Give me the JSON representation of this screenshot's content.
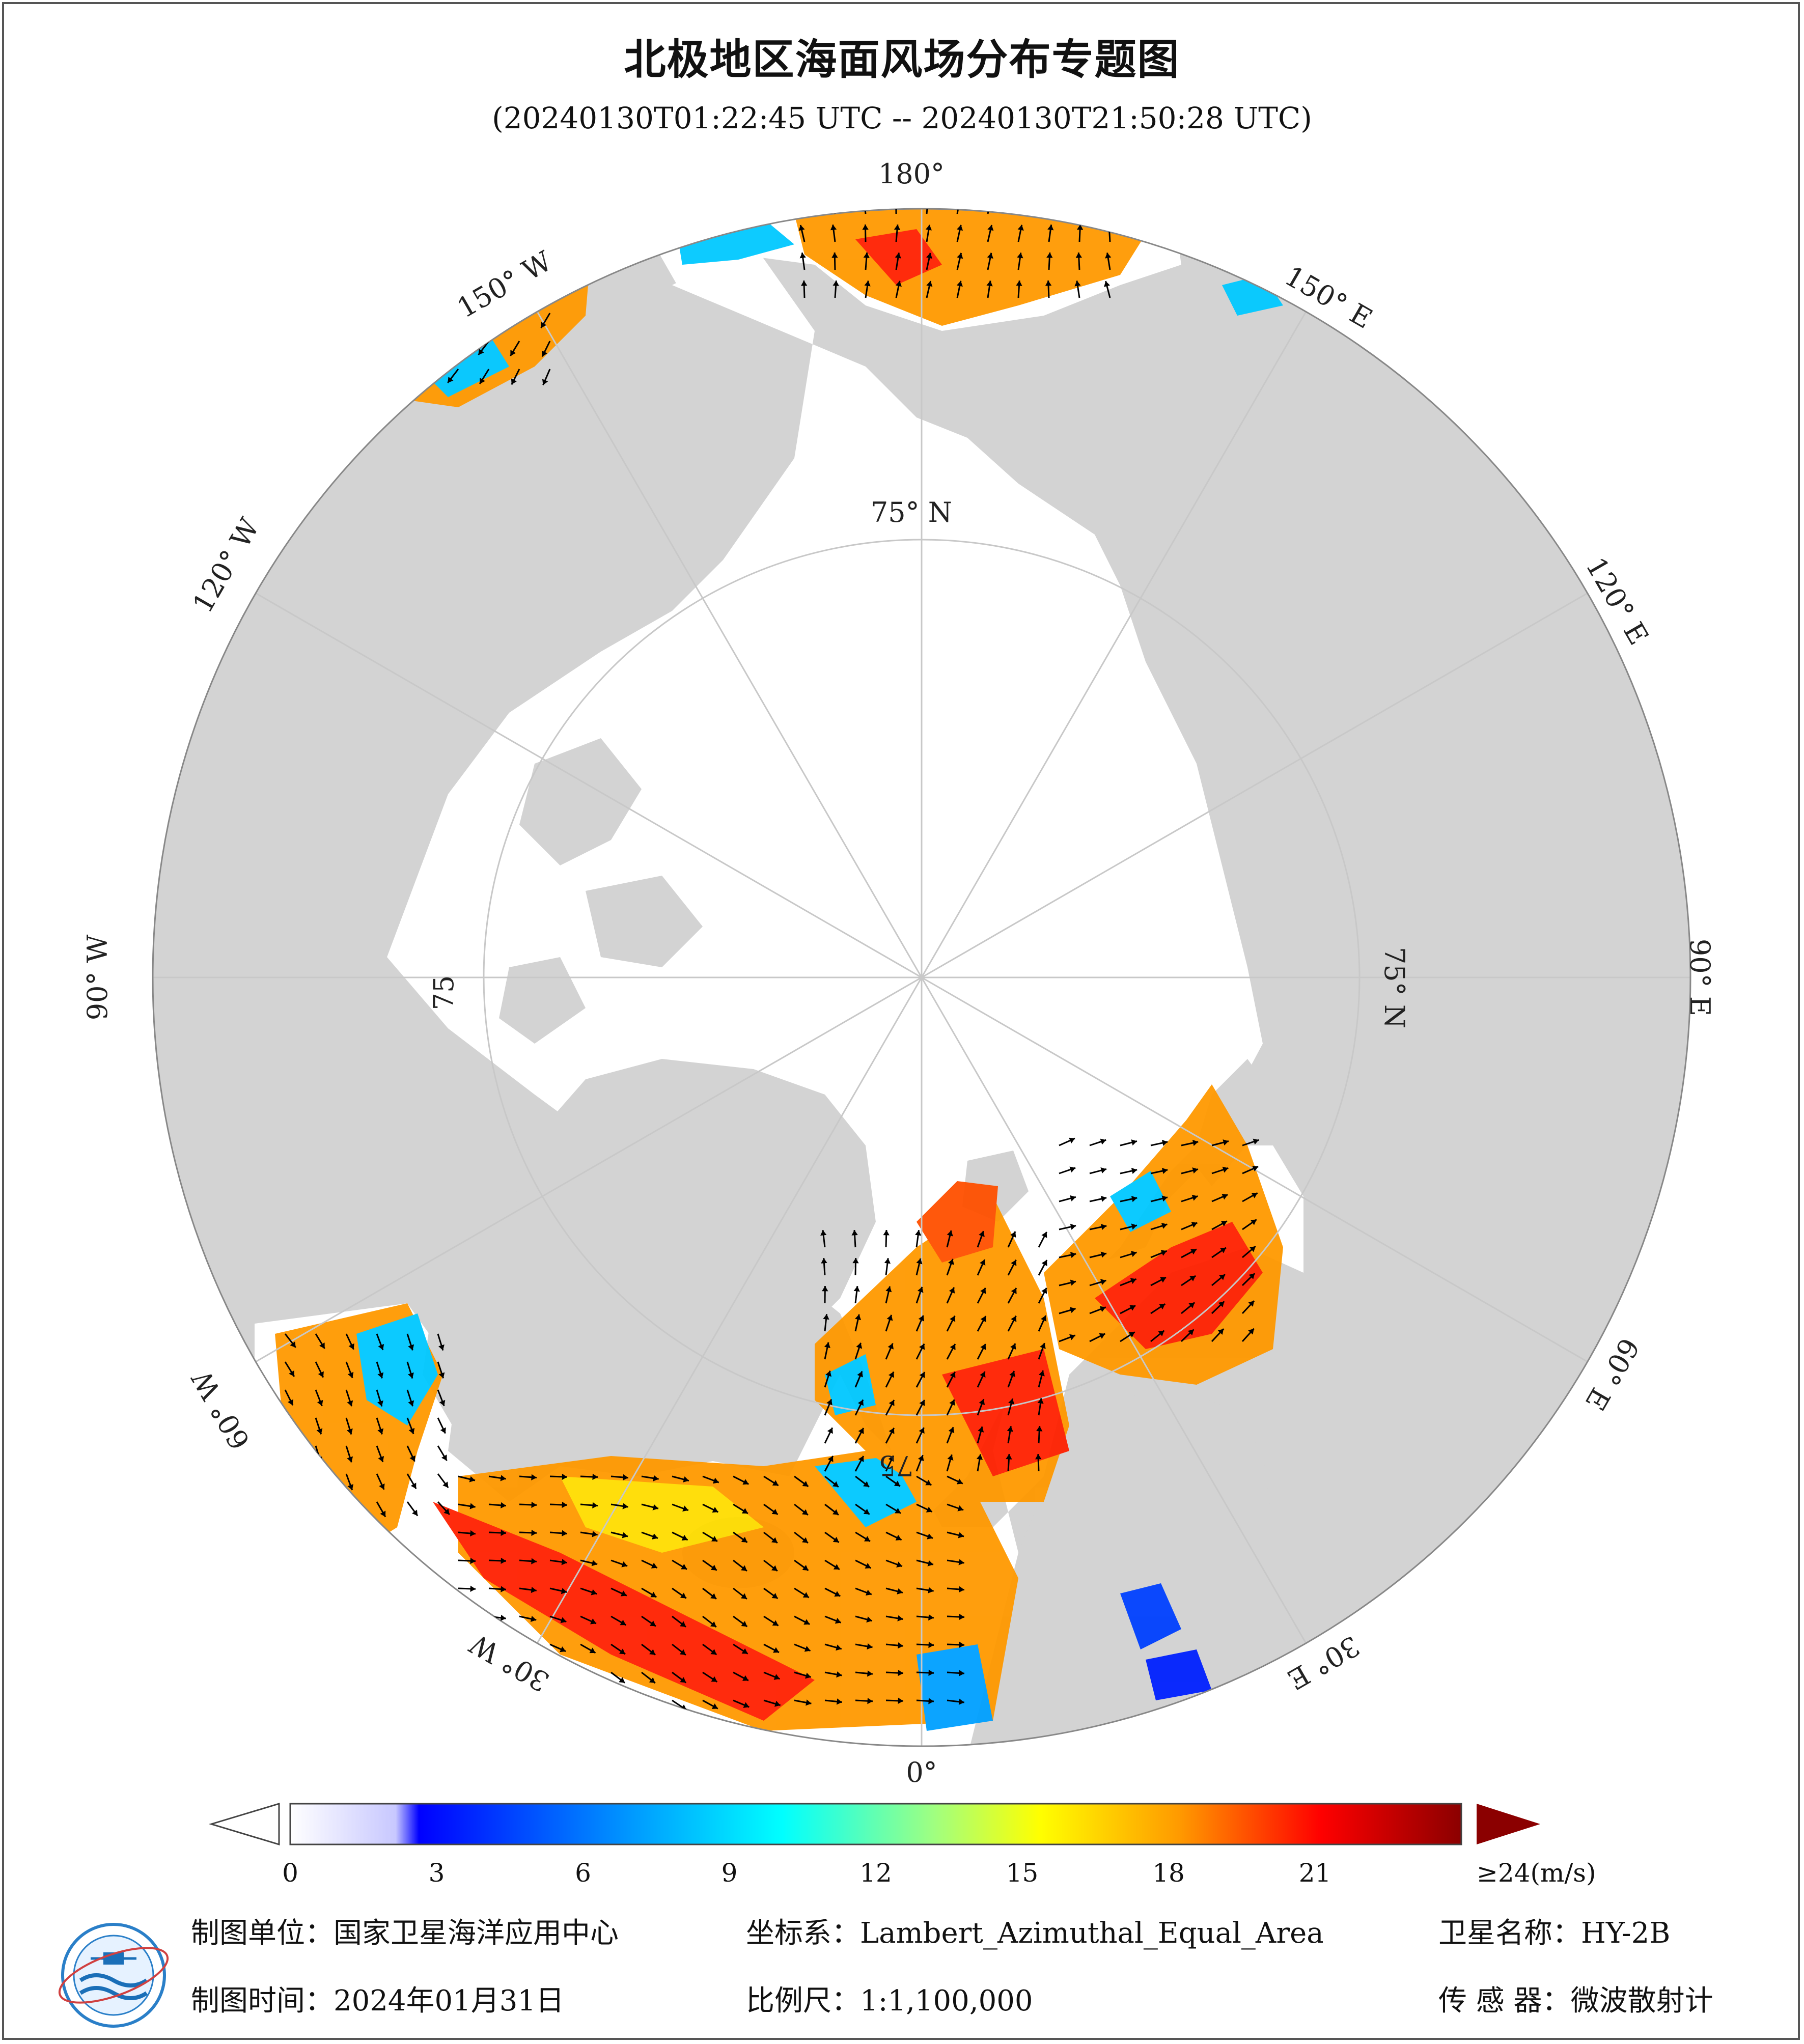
{
  "header": {
    "title": "北极地区海面风场分布专题图",
    "time_range": "(20240130T01:22:45 UTC -- 20240130T21:50:28 UTC)"
  },
  "map": {
    "projection_labels": {
      "lon_180": "180°",
      "lon_150w": "150° W",
      "lon_150e": "150° E",
      "lon_120w": "120° W",
      "lon_120e": "120° E",
      "lon_90w": "90° W",
      "lon_90e": "90° E",
      "lon_60w": "60° W",
      "lon_60e": "60° E",
      "lon_30w": "30° W",
      "lon_30e": "30° E",
      "lon_0": "0°",
      "lat_75n_top": "75° N",
      "lat_75n_right": "75° N",
      "lat_75_left": "75",
      "lat_75_bottom": "75"
    },
    "colors": {
      "land": "#d3d3d3",
      "ocean": "#ffffff",
      "grid": "#c8c8c8"
    }
  },
  "colorbar": {
    "unit_label": "≥24(m/s)",
    "ticks": [
      "0",
      "3",
      "6",
      "9",
      "12",
      "15",
      "18",
      "21"
    ],
    "tick_values": [
      0,
      3,
      6,
      9,
      12,
      15,
      18,
      21
    ],
    "min": 0,
    "max": 24,
    "stops": [
      "#ffffff",
      "#c8c8ff",
      "#0000ff",
      "#00a0ff",
      "#00ffff",
      "#a0ff80",
      "#ffff00",
      "#ff9900",
      "#ff0000",
      "#8b0000"
    ],
    "over_color": "#8b0000"
  },
  "footer": {
    "producer": "制图单位：国家卫星海洋应用中心",
    "date": "制图时间：2024年01月31日",
    "coordinate_system": "坐标系：Lambert_Azimuthal_Equal_Area",
    "scale": "比例尺：1:1,100,000",
    "satellite": "卫星名称：HY-2B",
    "sensor": "传 感 器：微波散射计"
  }
}
